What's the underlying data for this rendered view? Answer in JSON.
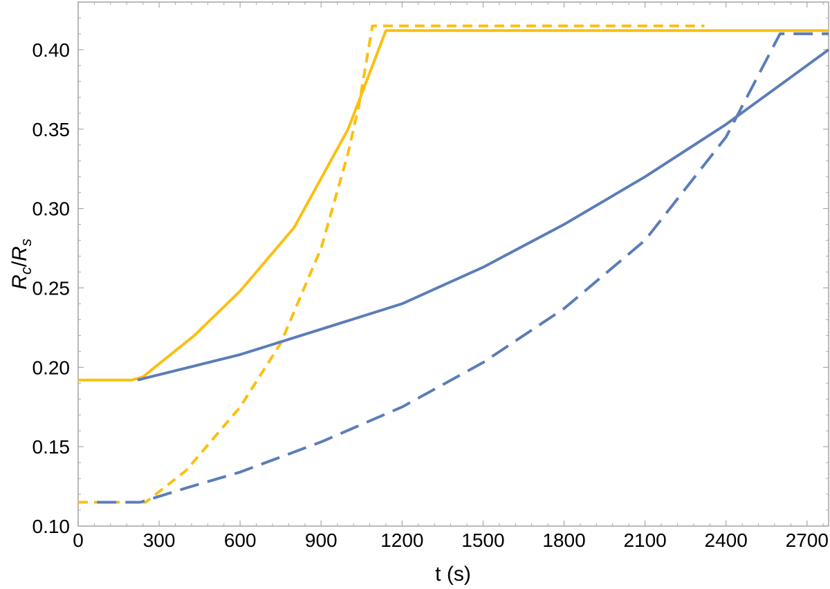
{
  "chart_data": {
    "type": "line",
    "xlabel": "t (s)",
    "ylabel": {
      "main": "R",
      "sub": "c",
      "slash": "/",
      "main2": "R",
      "sub2": "s"
    },
    "xlim": [
      0,
      2780
    ],
    "ylim": [
      0.1,
      0.43
    ],
    "xticks": [
      0,
      300,
      600,
      900,
      1200,
      1500,
      1800,
      2100,
      2400,
      2700
    ],
    "yticks": [
      0.1,
      0.15,
      0.2,
      0.25,
      0.3,
      0.35,
      0.4
    ],
    "ytick_labels": [
      "0.10",
      "0.15",
      "0.20",
      "0.25",
      "0.30",
      "0.35",
      "0.40"
    ],
    "grid": false,
    "colors": {
      "gold": "#FBBF10",
      "blue": "#5B7DB8"
    },
    "series": [
      {
        "color": "gold",
        "style": "solid",
        "points": [
          [
            0,
            0.192
          ],
          [
            200,
            0.192
          ],
          [
            240,
            0.194
          ],
          [
            430,
            0.22
          ],
          [
            600,
            0.248
          ],
          [
            800,
            0.288
          ],
          [
            1000,
            0.35
          ],
          [
            1140,
            0.412
          ],
          [
            2780,
            0.412
          ]
        ]
      },
      {
        "color": "gold",
        "style": "dashed",
        "points": [
          [
            0,
            0.115
          ],
          [
            250,
            0.115
          ],
          [
            400,
            0.135
          ],
          [
            600,
            0.175
          ],
          [
            750,
            0.215
          ],
          [
            900,
            0.275
          ],
          [
            1000,
            0.335
          ],
          [
            1040,
            0.365
          ],
          [
            1090,
            0.415
          ],
          [
            2320,
            0.415
          ]
        ]
      },
      {
        "color": "blue",
        "style": "solid",
        "points": [
          [
            220,
            0.192
          ],
          [
            600,
            0.208
          ],
          [
            900,
            0.224
          ],
          [
            1200,
            0.24
          ],
          [
            1500,
            0.263
          ],
          [
            1800,
            0.29
          ],
          [
            2100,
            0.32
          ],
          [
            2400,
            0.353
          ],
          [
            2780,
            0.4
          ]
        ]
      },
      {
        "color": "blue",
        "style": "longdash",
        "points": [
          [
            70,
            0.115
          ],
          [
            230,
            0.115
          ],
          [
            400,
            0.124
          ],
          [
            600,
            0.134
          ],
          [
            900,
            0.153
          ],
          [
            1200,
            0.175
          ],
          [
            1500,
            0.203
          ],
          [
            1800,
            0.237
          ],
          [
            2100,
            0.28
          ],
          [
            2400,
            0.345
          ],
          [
            2600,
            0.41
          ],
          [
            2780,
            0.41
          ]
        ]
      }
    ]
  }
}
